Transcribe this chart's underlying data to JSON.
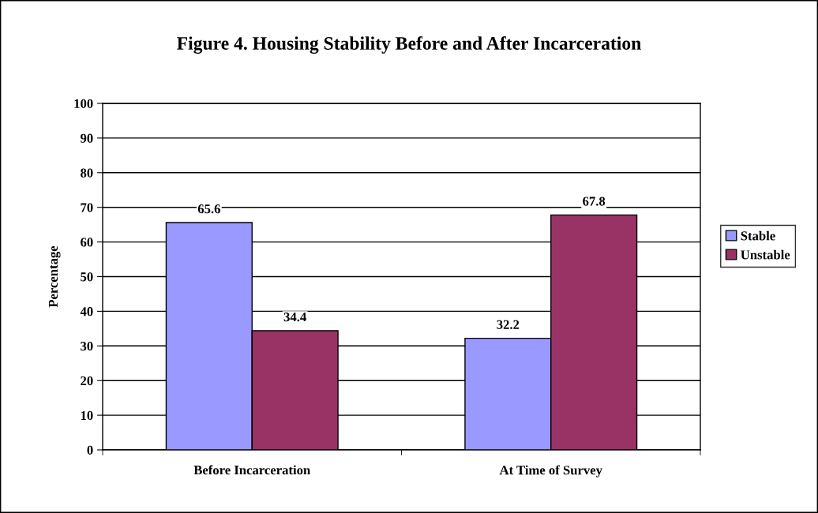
{
  "chart_data": {
    "type": "bar",
    "title": "Figure 4. Housing Stability Before and After Incarceration",
    "ylabel": "Percentage",
    "categories": [
      "Before Incarceration",
      "At Time of Survey"
    ],
    "series": [
      {
        "name": "Stable",
        "color": "#9999ff",
        "values": [
          65.6,
          32.2
        ]
      },
      {
        "name": "Unstable",
        "color": "#993366",
        "values": [
          34.4,
          67.8
        ]
      }
    ],
    "ylim": [
      0,
      100
    ],
    "yticks": [
      0,
      10,
      20,
      30,
      40,
      50,
      60,
      70,
      80,
      90,
      100
    ],
    "grid": "y",
    "legend": "right",
    "data_labels": true
  }
}
